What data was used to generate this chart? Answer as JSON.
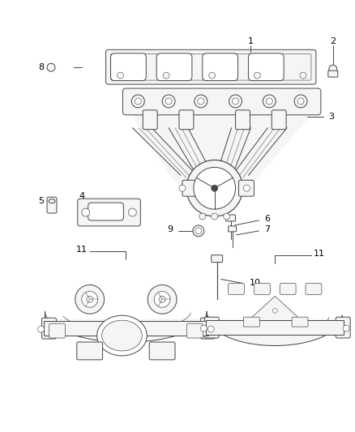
{
  "bg_color": "#ffffff",
  "lc": "#444444",
  "lc_light": "#888888",
  "fc_part": "#f5f5f5",
  "fc_white": "#ffffff",
  "fig_width": 4.38,
  "fig_height": 5.33,
  "dpi": 100
}
